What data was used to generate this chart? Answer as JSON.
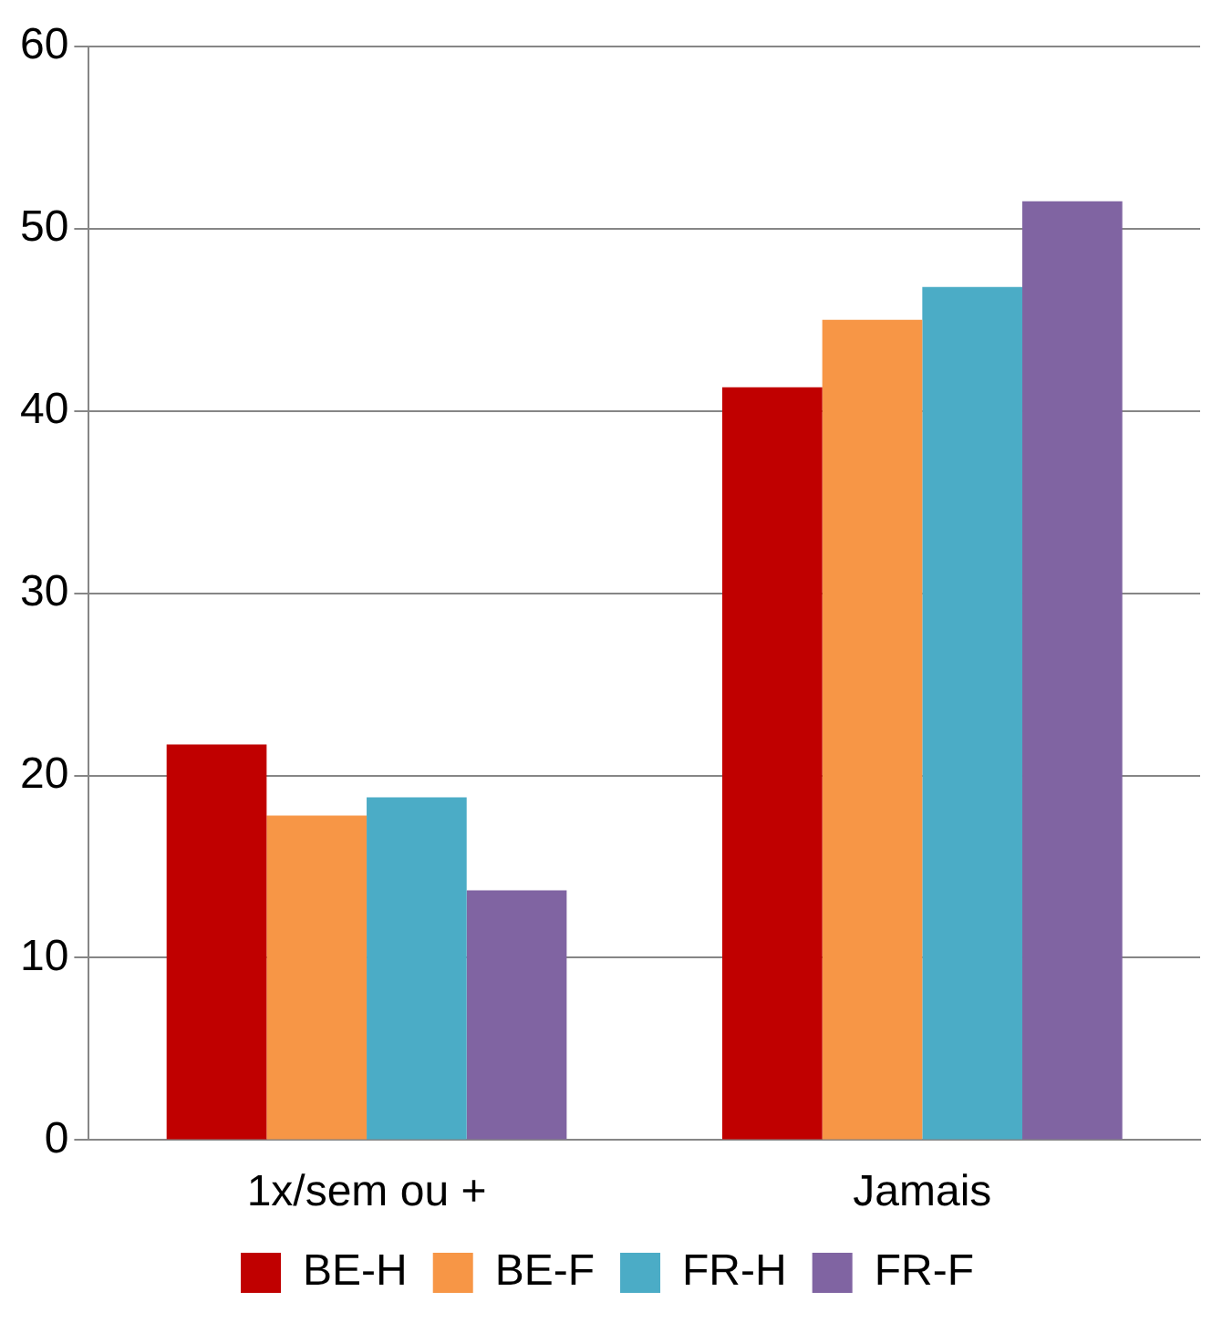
{
  "chart_data": {
    "type": "bar",
    "categories": [
      "1x/sem ou +",
      "Jamais"
    ],
    "series": [
      {
        "name": "BE-H",
        "color": "#c00000",
        "values": [
          21.7,
          41.3
        ]
      },
      {
        "name": "BE-F",
        "color": "#f79646",
        "values": [
          17.8,
          45.0
        ]
      },
      {
        "name": "FR-H",
        "color": "#4bacc6",
        "values": [
          18.8,
          46.8
        ]
      },
      {
        "name": "FR-F",
        "color": "#8064a2",
        "values": [
          13.7,
          51.5
        ]
      }
    ],
    "ylim": [
      0,
      60
    ],
    "yticks": [
      0,
      10,
      20,
      30,
      40,
      50,
      60
    ],
    "grid": "y",
    "legend": "bottom"
  }
}
